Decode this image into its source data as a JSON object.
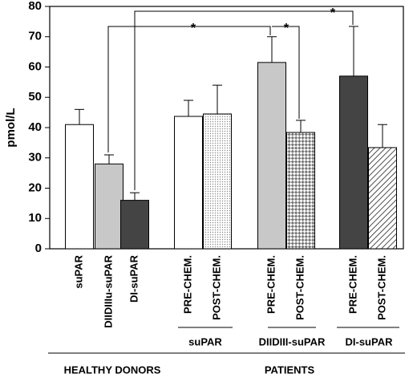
{
  "chart_data": {
    "type": "bar",
    "y_label": "pmol/L",
    "categories": [
      "suPAR",
      "DIIDIIIu-suPAR",
      "DI-suPAR",
      "PRE-CHEM.",
      "POST-CHEM.",
      "PRE-CHEM.",
      "POST-CHEM.",
      "PRE-CHEM.",
      "POST-CHEM."
    ],
    "values": [
      41,
      28,
      16,
      43.7,
      44.5,
      61.5,
      38.4,
      57,
      33.4
    ],
    "errors": [
      5,
      3,
      2.5,
      5.3,
      9.5,
      8.5,
      4,
      16.4,
      7.6
    ],
    "bar_styles": [
      "#ffffff",
      "#c8c8c8",
      "#444444",
      "#ffffff",
      "dots",
      "#c8c8c8",
      "checker",
      "#444444",
      "hatch"
    ],
    "group_labels": [
      "suPAR",
      "DIIDIII-suPAR",
      "DI-suPAR"
    ],
    "super_group_labels": [
      "HEALTHY DONORS",
      "PATIENTS"
    ],
    "annotations": [
      "*",
      "*",
      "*"
    ],
    "ylim": [
      0,
      80
    ],
    "yticks": [
      0,
      10,
      20,
      30,
      40,
      50,
      60,
      70,
      80
    ]
  }
}
